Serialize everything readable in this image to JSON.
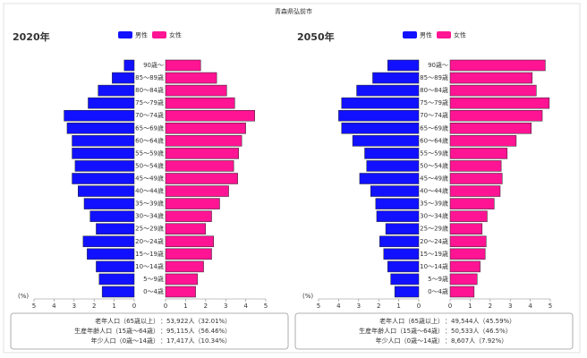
{
  "title": "青森県弘前市",
  "chart_data": [
    {
      "type": "pyramid",
      "title": "2020年",
      "categories": [
        "90歳〜",
        "85〜89歳",
        "80〜84歳",
        "75〜79歳",
        "70〜74歳",
        "65〜69歳",
        "60〜64歳",
        "55〜59歳",
        "50〜54歳",
        "45〜49歳",
        "40〜44歳",
        "35〜39歳",
        "30〜34歳",
        "25〜29歳",
        "20〜24歳",
        "15〜19歳",
        "10〜14歳",
        "5〜9歳",
        "0〜4歳"
      ],
      "series": [
        {
          "name": "男性",
          "color": "#1111ff",
          "values": [
            0.5,
            1.1,
            1.8,
            2.3,
            3.5,
            3.35,
            3.1,
            3.1,
            2.95,
            3.1,
            2.8,
            2.5,
            2.2,
            1.9,
            2.55,
            2.35,
            1.9,
            1.75,
            1.6
          ]
        },
        {
          "name": "女性",
          "color": "#ff1493",
          "values": [
            1.75,
            2.55,
            3.05,
            3.45,
            4.45,
            4.0,
            3.8,
            3.65,
            3.4,
            3.6,
            3.15,
            2.7,
            2.3,
            2.0,
            2.4,
            2.3,
            1.9,
            1.6,
            1.5
          ]
        }
      ],
      "xlim": [
        0,
        5
      ],
      "xticks": [
        0,
        1,
        2,
        3,
        4,
        5
      ],
      "x_label": "(%)",
      "summary": [
        {
          "label": "老年人口（65歳以上）",
          "value": "：53,922人（32.01%）"
        },
        {
          "label": "生産年齢人口（15歳〜64歳）",
          "value": "：95,115人（56.46%）"
        },
        {
          "label": "年少人口（0歳〜14歳）",
          "value": "：17,417人（10.34%）"
        }
      ]
    },
    {
      "type": "pyramid",
      "title": "2050年",
      "categories": [
        "90歳〜",
        "85〜89歳",
        "80〜84歳",
        "75〜79歳",
        "70〜74歳",
        "65〜69歳",
        "60〜64歳",
        "55〜59歳",
        "50〜54歳",
        "45〜49歳",
        "40〜44歳",
        "35〜39歳",
        "30〜34歳",
        "25〜29歳",
        "20〜24歳",
        "15〜19歳",
        "10〜14歳",
        "5〜9歳",
        "0〜4歳"
      ],
      "series": [
        {
          "name": "男性",
          "color": "#1111ff",
          "values": [
            1.55,
            2.3,
            3.1,
            3.85,
            4.0,
            3.85,
            3.3,
            2.7,
            2.6,
            2.95,
            2.4,
            2.15,
            2.1,
            1.65,
            1.95,
            1.75,
            1.55,
            1.4,
            1.2
          ]
        },
        {
          "name": "女性",
          "color": "#ff1493",
          "values": [
            4.75,
            4.1,
            4.3,
            4.95,
            4.6,
            4.05,
            3.3,
            2.85,
            2.55,
            2.6,
            2.5,
            2.2,
            1.85,
            1.6,
            1.8,
            1.75,
            1.5,
            1.35,
            1.2
          ]
        }
      ],
      "xlim": [
        0,
        5
      ],
      "xticks": [
        0,
        1,
        2,
        3,
        4,
        5
      ],
      "x_label": "(%)",
      "summary": [
        {
          "label": "老年人口（65歳以上）",
          "value": "：49,544人（45.59%）"
        },
        {
          "label": "生産年齢人口（15歳〜64歳）",
          "value": "：50,533人（46.5%）"
        },
        {
          "label": "年少人口（0歳〜14歳）",
          "value": "：8,607人（7.92%）"
        }
      ]
    }
  ]
}
